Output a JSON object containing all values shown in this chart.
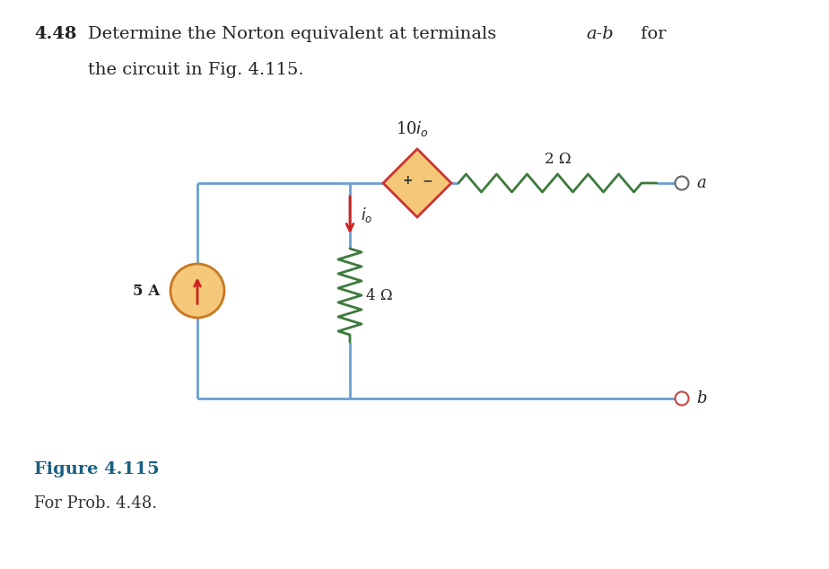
{
  "title_bold": "4.48",
  "title_text": "Determine the Norton equivalent at terminals   a-b  for",
  "title_line2": "the circuit in Fig. 4.115.",
  "fig_label": "Figure 4.115",
  "fig_sublabel": "For Prob. 4.48.",
  "background_color": "#ffffff",
  "wire_color": "#6b9fd4",
  "resistor_color": "#3d7a3d",
  "cs_fill": "#f5c87a",
  "cs_edge": "#c87820",
  "ds_fill": "#f5c878",
  "ds_edge": "#cc3333",
  "arrow_color": "#cc2222",
  "resistor_2_label": "2 Ω",
  "resistor_4_label": "4 Ω",
  "current_source_label": "5 A",
  "fig_label_color": "#1a6080",
  "fig_sublabel_color": "#333333",
  "title_color": "#222222"
}
